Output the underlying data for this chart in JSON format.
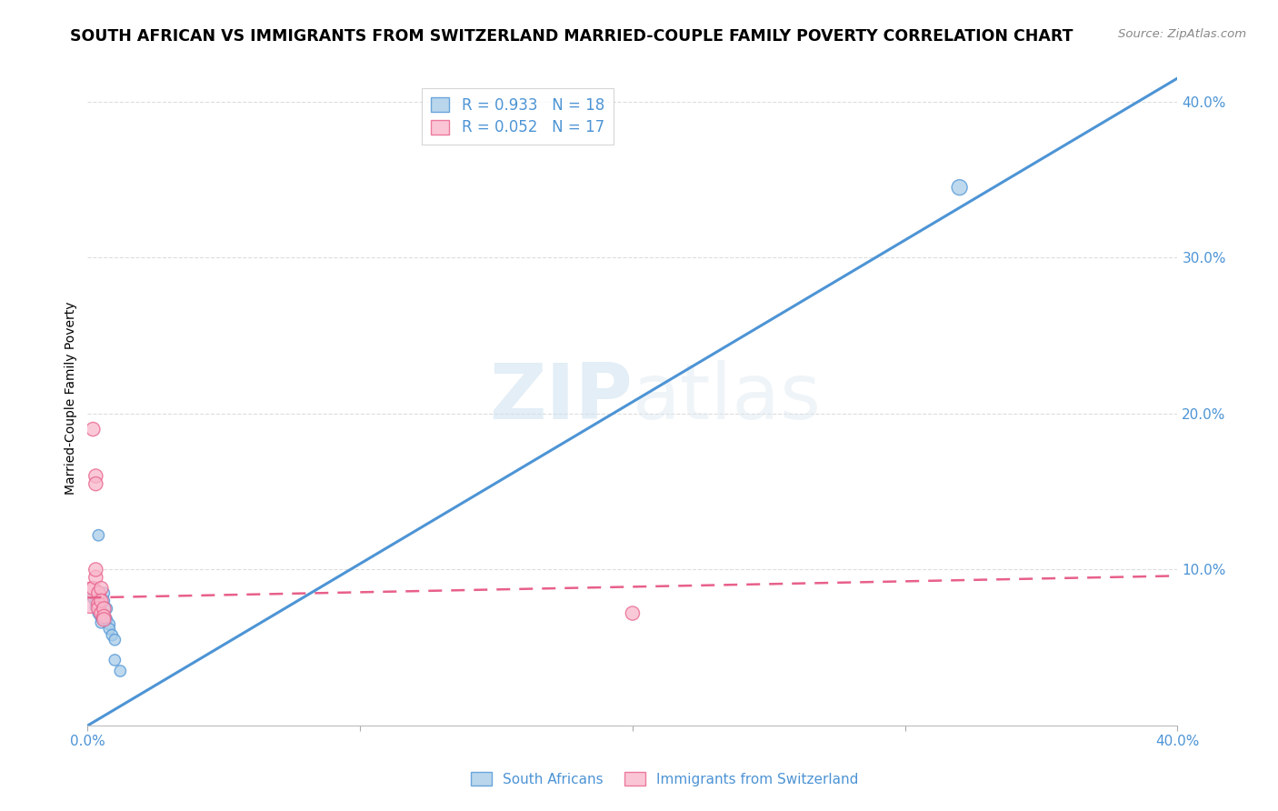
{
  "title": "SOUTH AFRICAN VS IMMIGRANTS FROM SWITZERLAND MARRIED-COUPLE FAMILY POVERTY CORRELATION CHART",
  "source": "Source: ZipAtlas.com",
  "ylabel": "Married-Couple Family Poverty",
  "xlim": [
    0.0,
    0.4
  ],
  "ylim": [
    0.0,
    0.42
  ],
  "xticks": [
    0.0,
    0.1,
    0.2,
    0.3,
    0.4
  ],
  "yticks": [
    0.0,
    0.1,
    0.2,
    0.3,
    0.4
  ],
  "xtick_labels": [
    "0.0%",
    "",
    "",
    "",
    "40.0%"
  ],
  "ytick_labels": [
    "",
    "10.0%",
    "20.0%",
    "30.0%",
    "40.0%"
  ],
  "background_color": "#ffffff",
  "watermark": "ZIPatlas",
  "legend_r1": "R = 0.933   N = 18",
  "legend_r2": "R = 0.052   N = 17",
  "legend_label1": "South Africans",
  "legend_label2": "Immigrants from Switzerland",
  "blue_color": "#a8cce8",
  "pink_color": "#f9b8cc",
  "blue_line_color": "#4d94d5",
  "pink_line_color": "#e8608a",
  "blue_scatter": [
    [
      0.002,
      0.082
    ],
    [
      0.003,
      0.079
    ],
    [
      0.003,
      0.076
    ],
    [
      0.004,
      0.122
    ],
    [
      0.004,
      0.072
    ],
    [
      0.005,
      0.069
    ],
    [
      0.005,
      0.066
    ],
    [
      0.006,
      0.085
    ],
    [
      0.006,
      0.08
    ],
    [
      0.007,
      0.075
    ],
    [
      0.007,
      0.068
    ],
    [
      0.008,
      0.065
    ],
    [
      0.008,
      0.062
    ],
    [
      0.009,
      0.058
    ],
    [
      0.01,
      0.055
    ],
    [
      0.01,
      0.042
    ],
    [
      0.012,
      0.035
    ],
    [
      0.32,
      0.345
    ]
  ],
  "pink_scatter": [
    [
      0.001,
      0.082
    ],
    [
      0.002,
      0.088
    ],
    [
      0.002,
      0.19
    ],
    [
      0.003,
      0.16
    ],
    [
      0.003,
      0.155
    ],
    [
      0.003,
      0.095
    ],
    [
      0.004,
      0.085
    ],
    [
      0.004,
      0.078
    ],
    [
      0.004,
      0.075
    ],
    [
      0.005,
      0.072
    ],
    [
      0.005,
      0.088
    ],
    [
      0.005,
      0.08
    ],
    [
      0.006,
      0.075
    ],
    [
      0.006,
      0.07
    ],
    [
      0.006,
      0.068
    ],
    [
      0.2,
      0.072
    ],
    [
      0.003,
      0.1
    ]
  ],
  "blue_sizes": [
    80,
    80,
    80,
    80,
    80,
    80,
    80,
    80,
    80,
    80,
    80,
    80,
    80,
    80,
    80,
    80,
    80,
    150
  ],
  "pink_sizes": [
    600,
    120,
    120,
    120,
    120,
    120,
    120,
    120,
    120,
    120,
    120,
    120,
    120,
    120,
    120,
    120,
    120
  ],
  "blue_line_x": [
    0.0,
    0.4
  ],
  "blue_line_y": [
    0.0,
    0.415
  ],
  "pink_line_x": [
    0.0,
    0.4
  ],
  "pink_line_y": [
    0.082,
    0.096
  ],
  "grid_color": "#dddddd",
  "title_fontsize": 12.5,
  "axis_label_fontsize": 10,
  "tick_fontsize": 11
}
